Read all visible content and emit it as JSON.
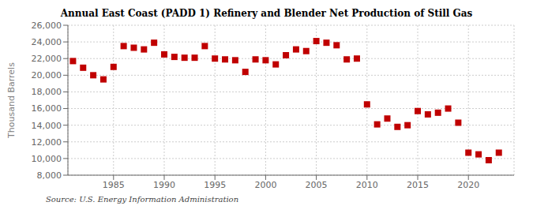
{
  "chart_data": {
    "type": "scatter",
    "title": "Annual East Coast (PADD 1) Refinery and Blender Net Production of Still Gas",
    "ylabel": "Thousand Barrels",
    "annotation": "Source: U.S. Energy Information Administration",
    "x": [
      1981,
      1982,
      1983,
      1984,
      1985,
      1986,
      1987,
      1988,
      1989,
      1990,
      1991,
      1992,
      1993,
      1994,
      1995,
      1996,
      1997,
      1998,
      1999,
      2000,
      2001,
      2002,
      2003,
      2004,
      2005,
      2006,
      2007,
      2008,
      2009,
      2010,
      2011,
      2012,
      2013,
      2014,
      2015,
      2016,
      2017,
      2018,
      2019,
      2020,
      2021,
      2022,
      2023
    ],
    "values": [
      21700,
      20900,
      20000,
      19500,
      21000,
      23500,
      23300,
      23100,
      23900,
      22500,
      22200,
      22100,
      22100,
      23500,
      22000,
      21900,
      21800,
      20400,
      21900,
      21800,
      21300,
      22400,
      23100,
      22900,
      24100,
      23900,
      23600,
      21900,
      22000,
      16500,
      14100,
      14800,
      13800,
      14000,
      15700,
      15300,
      15500,
      16000,
      14300,
      10700,
      10500,
      9800,
      10700
    ],
    "color": "#c00000",
    "marker": "square",
    "xlim": [
      1980.5,
      2024.5
    ],
    "xticks": [
      1985,
      1990,
      1995,
      2000,
      2005,
      2010,
      2015,
      2020
    ],
    "ylim": [
      8000,
      26000
    ],
    "yticks": [
      {
        "value": 8000,
        "label": "8,000"
      },
      {
        "value": 10000,
        "label": "10,000"
      },
      {
        "value": 12000,
        "label": "12,000"
      },
      {
        "value": 14000,
        "label": "14,000"
      },
      {
        "value": 16000,
        "label": "16,000"
      },
      {
        "value": 18000,
        "label": "18,000"
      },
      {
        "value": 20000,
        "label": "20,000"
      },
      {
        "value": 22000,
        "label": "22,000"
      },
      {
        "value": 24000,
        "label": "24,000"
      },
      {
        "value": 26000,
        "label": "26,000"
      }
    ],
    "grid": true
  }
}
